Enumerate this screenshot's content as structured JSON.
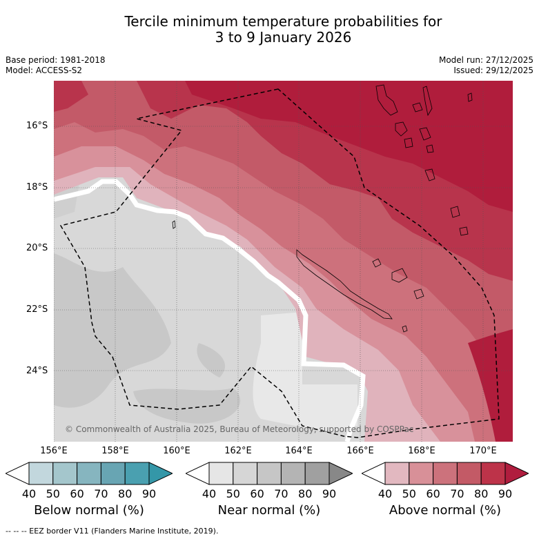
{
  "title_line1": "Tercile minimum temperature probabilities for",
  "title_line2": "3 to 9 January 2026",
  "meta": {
    "base_period": "Base period: 1981-2018",
    "model": "Model: ACCESS-S2",
    "model_run": "Model run: 27/12/2025",
    "issued": "Issued: 29/12/2025"
  },
  "map": {
    "copyright": "© Commonwealth of Australia 2025, Bureau of Meteorology, supported by COSPPac",
    "lat_labels": [
      "16°S",
      "18°S",
      "20°S",
      "22°S",
      "24°S"
    ],
    "lon_labels": [
      "156°E",
      "158°E",
      "160°E",
      "162°E",
      "164°E",
      "166°E",
      "168°E",
      "170°E"
    ]
  },
  "legends": [
    {
      "caption": "Below normal (%)",
      "ticks": [
        "40",
        "50",
        "60",
        "70",
        "80",
        "90"
      ],
      "colors": [
        "#ffffff",
        "#c2d7dd",
        "#a4c6cc",
        "#86b5bf",
        "#68a5b3",
        "#4aa0b0",
        "#3497a8"
      ]
    },
    {
      "caption": "Near normal (%)",
      "ticks": [
        "40",
        "50",
        "60",
        "70",
        "80",
        "90"
      ],
      "colors": [
        "#ffffff",
        "#e6e6e6",
        "#d6d6d6",
        "#c6c6c6",
        "#b4b4b4",
        "#a0a0a0",
        "#888888"
      ]
    },
    {
      "caption": "Above normal (%)",
      "ticks": [
        "40",
        "50",
        "60",
        "70",
        "80",
        "90"
      ],
      "colors": [
        "#ffffff",
        "#e2b8c0",
        "#d89098",
        "#cc727c",
        "#c35a66",
        "#bd3349",
        "#b01d3e"
      ]
    }
  ],
  "footer": "--  --  -- EEZ border V11 (Flanders Marine Institute, 2019)."
}
